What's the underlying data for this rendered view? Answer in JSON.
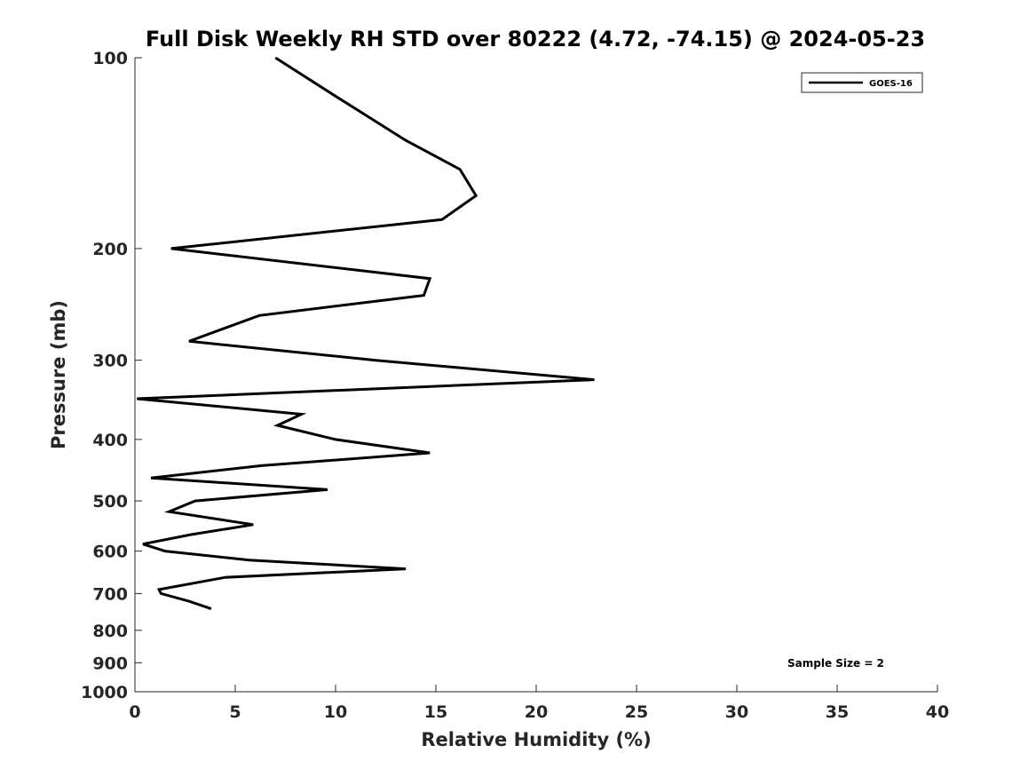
{
  "chart_data": {
    "type": "line",
    "title": "Full Disk Weekly RH STD over 80222 (4.72, -74.15) @ 2024-05-23",
    "xlabel": "Relative Humidity (%)",
    "ylabel": "Pressure (mb)",
    "xlim": [
      0,
      40
    ],
    "ylim": [
      100,
      1000
    ],
    "y_scale": "log",
    "y_inverted": true,
    "grid": false,
    "legend_position": "top-right",
    "x_ticks": [
      "0",
      "5",
      "10",
      "15",
      "20",
      "25",
      "30",
      "35",
      "40"
    ],
    "x_tick_values": [
      0,
      5,
      10,
      15,
      20,
      25,
      30,
      35,
      40
    ],
    "y_ticks": [
      "100",
      "200",
      "300",
      "400",
      "500",
      "600",
      "700",
      "800",
      "900",
      "1000"
    ],
    "y_tick_values": [
      100,
      200,
      300,
      400,
      500,
      600,
      700,
      800,
      900,
      1000
    ],
    "series": [
      {
        "name": "GOES-16",
        "color": "#000000",
        "points": [
          {
            "rh": 7.0,
            "p": 100
          },
          {
            "rh": 10.0,
            "p": 115
          },
          {
            "rh": 13.5,
            "p": 135
          },
          {
            "rh": 16.2,
            "p": 150
          },
          {
            "rh": 17.0,
            "p": 165
          },
          {
            "rh": 15.3,
            "p": 180
          },
          {
            "rh": 1.8,
            "p": 200
          },
          {
            "rh": 14.7,
            "p": 223
          },
          {
            "rh": 14.4,
            "p": 237
          },
          {
            "rh": 6.2,
            "p": 255
          },
          {
            "rh": 2.7,
            "p": 280
          },
          {
            "rh": 12.0,
            "p": 300
          },
          {
            "rh": 22.9,
            "p": 322
          },
          {
            "rh": 0.1,
            "p": 345
          },
          {
            "rh": 8.3,
            "p": 365
          },
          {
            "rh": 7.1,
            "p": 380
          },
          {
            "rh": 10.0,
            "p": 400
          },
          {
            "rh": 14.7,
            "p": 420
          },
          {
            "rh": 6.3,
            "p": 440
          },
          {
            "rh": 0.8,
            "p": 460
          },
          {
            "rh": 9.6,
            "p": 480
          },
          {
            "rh": 3.0,
            "p": 500
          },
          {
            "rh": 1.7,
            "p": 520
          },
          {
            "rh": 5.9,
            "p": 545
          },
          {
            "rh": 2.8,
            "p": 565
          },
          {
            "rh": 0.4,
            "p": 585
          },
          {
            "rh": 1.5,
            "p": 600
          },
          {
            "rh": 5.7,
            "p": 620
          },
          {
            "rh": 13.5,
            "p": 640
          },
          {
            "rh": 4.5,
            "p": 660
          },
          {
            "rh": 1.2,
            "p": 690
          },
          {
            "rh": 1.3,
            "p": 700
          },
          {
            "rh": 2.7,
            "p": 720
          },
          {
            "rh": 3.8,
            "p": 740
          }
        ]
      }
    ],
    "annotations": [
      {
        "text": "Sample Size = 2",
        "position": "bottom-right"
      }
    ]
  }
}
